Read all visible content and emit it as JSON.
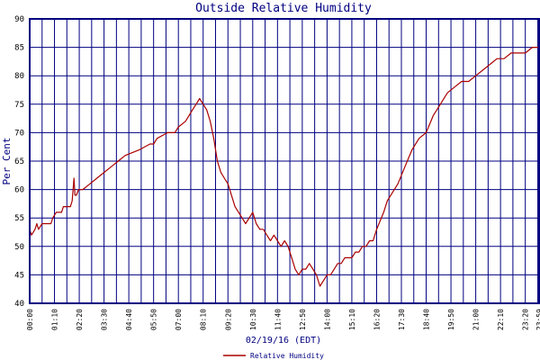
{
  "chart_data": {
    "type": "line",
    "title": "Outside Relative Humidity",
    "ylabel": "Per Cent",
    "xlabel": "02/19/16 (EDT)",
    "ylim": [
      40,
      90
    ],
    "y_ticks": [
      "40",
      "45",
      "50",
      "55",
      "60",
      "65",
      "70",
      "75",
      "80",
      "85",
      "90"
    ],
    "x_ticks": [
      "00:00",
      "01:10",
      "02:20",
      "03:30",
      "04:40",
      "05:50",
      "07:00",
      "08:10",
      "09:20",
      "10:30",
      "11:40",
      "12:50",
      "14:00",
      "15:10",
      "16:20",
      "17:30",
      "18:40",
      "19:50",
      "21:00",
      "22:10",
      "23:20",
      "23:59"
    ],
    "grid": true,
    "legend_position": "bottom",
    "series": [
      {
        "name": "Relative Humidity",
        "color": "#aa0000",
        "points": [
          [
            "00:00",
            53
          ],
          [
            "00:05",
            52
          ],
          [
            "00:15",
            53
          ],
          [
            "00:20",
            54
          ],
          [
            "00:25",
            53
          ],
          [
            "00:35",
            54
          ],
          [
            "01:00",
            54
          ],
          [
            "01:05",
            55
          ],
          [
            "01:15",
            56
          ],
          [
            "01:30",
            56
          ],
          [
            "01:35",
            57
          ],
          [
            "01:55",
            57
          ],
          [
            "02:00",
            58
          ],
          [
            "02:05",
            62
          ],
          [
            "02:08",
            59
          ],
          [
            "02:12",
            59
          ],
          [
            "02:18",
            60
          ],
          [
            "02:30",
            60
          ],
          [
            "02:50",
            61
          ],
          [
            "03:10",
            62
          ],
          [
            "03:30",
            63
          ],
          [
            "03:50",
            64
          ],
          [
            "04:10",
            65
          ],
          [
            "04:30",
            66
          ],
          [
            "05:10",
            67
          ],
          [
            "05:40",
            68
          ],
          [
            "05:50",
            68
          ],
          [
            "06:00",
            69
          ],
          [
            "06:30",
            70
          ],
          [
            "06:50",
            70
          ],
          [
            "07:00",
            71
          ],
          [
            "07:20",
            72
          ],
          [
            "07:40",
            74
          ],
          [
            "07:50",
            75
          ],
          [
            "08:00",
            76
          ],
          [
            "08:10",
            75
          ],
          [
            "08:20",
            74
          ],
          [
            "08:30",
            72
          ],
          [
            "08:40",
            69
          ],
          [
            "08:50",
            65
          ],
          [
            "09:00",
            63
          ],
          [
            "09:10",
            62
          ],
          [
            "09:20",
            61
          ],
          [
            "09:30",
            59
          ],
          [
            "09:40",
            57
          ],
          [
            "09:50",
            56
          ],
          [
            "10:00",
            55
          ],
          [
            "10:10",
            54
          ],
          [
            "10:20",
            55
          ],
          [
            "10:30",
            56
          ],
          [
            "10:40",
            54
          ],
          [
            "10:50",
            53
          ],
          [
            "11:00",
            53
          ],
          [
            "11:10",
            52
          ],
          [
            "11:20",
            51
          ],
          [
            "11:30",
            52
          ],
          [
            "11:40",
            51
          ],
          [
            "11:50",
            50
          ],
          [
            "12:00",
            51
          ],
          [
            "12:10",
            50
          ],
          [
            "12:20",
            48
          ],
          [
            "12:30",
            46
          ],
          [
            "12:40",
            45
          ],
          [
            "12:50",
            46
          ],
          [
            "13:00",
            46
          ],
          [
            "13:10",
            47
          ],
          [
            "13:20",
            46
          ],
          [
            "13:30",
            45
          ],
          [
            "13:40",
            43
          ],
          [
            "13:50",
            44
          ],
          [
            "14:00",
            45
          ],
          [
            "14:10",
            45
          ],
          [
            "14:20",
            46
          ],
          [
            "14:30",
            47
          ],
          [
            "14:40",
            47
          ],
          [
            "14:50",
            48
          ],
          [
            "15:00",
            48
          ],
          [
            "15:10",
            48
          ],
          [
            "15:20",
            49
          ],
          [
            "15:30",
            49
          ],
          [
            "15:40",
            50
          ],
          [
            "15:50",
            50
          ],
          [
            "16:00",
            51
          ],
          [
            "16:10",
            51
          ],
          [
            "16:20",
            53
          ],
          [
            "16:40",
            56
          ],
          [
            "16:50",
            58
          ],
          [
            "17:00",
            59
          ],
          [
            "17:20",
            61
          ],
          [
            "17:40",
            64
          ],
          [
            "18:00",
            67
          ],
          [
            "18:20",
            69
          ],
          [
            "18:40",
            70
          ],
          [
            "19:00",
            73
          ],
          [
            "19:20",
            75
          ],
          [
            "19:40",
            77
          ],
          [
            "20:00",
            78
          ],
          [
            "20:20",
            79
          ],
          [
            "20:40",
            79
          ],
          [
            "21:00",
            80
          ],
          [
            "21:20",
            81
          ],
          [
            "21:40",
            82
          ],
          [
            "22:00",
            83
          ],
          [
            "22:20",
            83
          ],
          [
            "22:40",
            84
          ],
          [
            "23:00",
            84
          ],
          [
            "23:20",
            84
          ],
          [
            "23:40",
            85
          ],
          [
            "23:50",
            85
          ],
          [
            "23:59",
            85
          ]
        ]
      }
    ]
  }
}
